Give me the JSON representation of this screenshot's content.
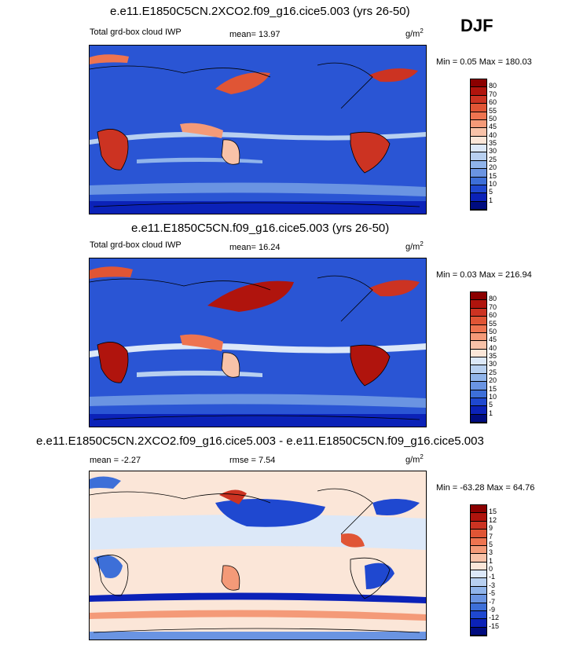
{
  "season_label": "DJF",
  "panels": [
    {
      "title": "e.e11.E1850C5CN.2XCO2.f09_g16.cice5.003 (yrs 26-50)",
      "variable_label": "Total grd-box cloud IWP",
      "stat_label": "mean=",
      "stat_value": "13.97",
      "unit_base": "g/m",
      "unit_exp": "2",
      "minmax": "Min =  0.05 Max = 180.03",
      "type": "mean"
    },
    {
      "title": "e.e11.E1850C5CN.f09_g16.cice5.003 (yrs 26-50)",
      "variable_label": "Total grd-box cloud IWP",
      "stat_label": "mean=",
      "stat_value": "16.24",
      "unit_base": "g/m",
      "unit_exp": "2",
      "minmax": "Min =  0.03 Max = 216.94",
      "type": "mean"
    },
    {
      "title": "e.e11.E1850C5CN.2XCO2.f09_g16.cice5.003 - e.e11.E1850C5CN.f09_g16.cice5.003",
      "stat_label": "mean =",
      "stat_value": "-2.27",
      "rmse_label": "rmse =",
      "rmse_value": "7.54",
      "unit_base": "g/m",
      "unit_exp": "2",
      "minmax": "Min = -63.28 Max =  64.76",
      "type": "diff"
    }
  ],
  "colorbars": {
    "mean": {
      "labels": [
        "80",
        "70",
        "60",
        "55",
        "50",
        "45",
        "40",
        "35",
        "30",
        "25",
        "20",
        "15",
        "10",
        "5",
        "1"
      ],
      "colors": [
        "#8b0000",
        "#b0140d",
        "#cc3322",
        "#e05535",
        "#ee7450",
        "#f49a78",
        "#f8c2a8",
        "#fbe6d8",
        "#dce8f8",
        "#b8d0f0",
        "#90b4ea",
        "#6a94e2",
        "#3d6fd8",
        "#1f48d0",
        "#0b22b8",
        "#000c80"
      ]
    },
    "diff": {
      "labels": [
        "15",
        "12",
        "9",
        "7",
        "5",
        "3",
        "1",
        "0",
        "-1",
        "-3",
        "-5",
        "-7",
        "-9",
        "-12",
        "-15"
      ],
      "colors": [
        "#8b0000",
        "#b0140d",
        "#cc3322",
        "#e05535",
        "#ee7450",
        "#f49a78",
        "#f8c2a8",
        "#fbe6d8",
        "#dce8f8",
        "#b8d0f0",
        "#90b4ea",
        "#6a94e2",
        "#3d6fd8",
        "#1f48d0",
        "#0b22b8",
        "#000c80"
      ]
    }
  },
  "chart_data": [
    {
      "type": "heatmap",
      "title": "e.e11.E1850C5CN.2XCO2.f09_g16.cice5.003 (yrs 26-50)",
      "mean": 13.97,
      "min": 0.05,
      "max": 180.03,
      "levels": [
        1,
        5,
        10,
        15,
        20,
        25,
        30,
        35,
        40,
        45,
        50,
        55,
        60,
        70,
        80
      ]
    },
    {
      "type": "heatmap",
      "title": "e.e11.E1850C5CN.f09_g16.cice5.003 (yrs 26-50)",
      "mean": 16.24,
      "min": 0.03,
      "max": 216.94,
      "levels": [
        1,
        5,
        10,
        15,
        20,
        25,
        30,
        35,
        40,
        45,
        50,
        55,
        60,
        70,
        80
      ]
    },
    {
      "type": "heatmap",
      "title": "e.e11.E1850C5CN.2XCO2.f09_g16.cice5.003 - e.e11.E1850C5CN.f09_g16.cice5.003",
      "mean": -2.27,
      "rmse": 7.54,
      "min": -63.28,
      "max": 64.76,
      "levels": [
        -15,
        -12,
        -9,
        -7,
        -5,
        -3,
        -1,
        0,
        1,
        3,
        5,
        7,
        9,
        12,
        15
      ]
    }
  ]
}
